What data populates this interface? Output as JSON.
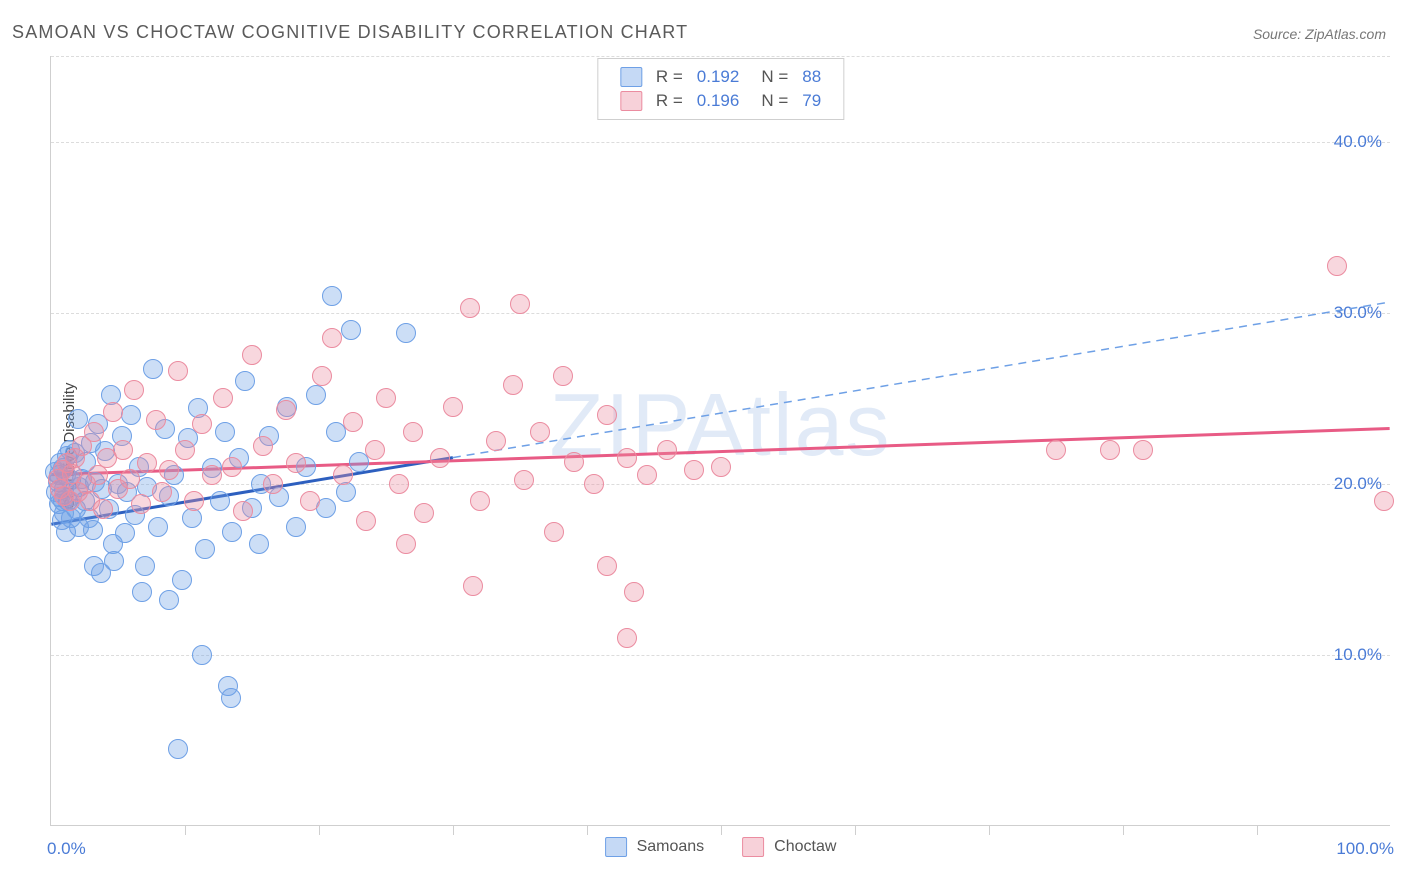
{
  "chart": {
    "type": "scatter",
    "title": "SAMOAN VS CHOCTAW COGNITIVE DISABILITY CORRELATION CHART",
    "source_label": "Source: ZipAtlas.com",
    "ylabel": "Cognitive Disability",
    "watermark": "ZIPAtlas",
    "background_color": "#ffffff",
    "grid_color": "#dcdcdc",
    "axis_color": "#cfcfcf",
    "tick_label_color": "#4a7bd6",
    "title_color": "#5a5a5a",
    "title_fontsize": 18,
    "label_fontsize": 15,
    "tick_fontsize": 17,
    "xlim": [
      0,
      100
    ],
    "ylim": [
      0,
      45
    ],
    "xlim_labels": [
      "0.0%",
      "100.0%"
    ],
    "xtick_positions": [
      10,
      20,
      30,
      40,
      50,
      60,
      70,
      80,
      90
    ],
    "yticks": [
      10,
      20,
      30,
      40
    ],
    "ytick_labels": [
      "10.0%",
      "20.0%",
      "30.0%",
      "40.0%"
    ],
    "marker_radius": 10,
    "marker_opacity": 0.5,
    "marker_stroke_width": 1.5,
    "series": [
      {
        "name": "Samoans",
        "fill_color": "rgba(110,160,230,0.35)",
        "stroke_color": "#6ea0e6",
        "trend_color": "#2d5fbf",
        "trend_width": 3,
        "dash_color": "#6ea0e6",
        "r": 0.192,
        "n": 88,
        "trend_solid": {
          "x1": 0,
          "y1": 17.6,
          "x2": 30,
          "y2": 21.5
        },
        "trend_dash": {
          "x1": 30,
          "y1": 21.5,
          "x2": 100,
          "y2": 30.6
        },
        "points": [
          [
            0.3,
            20.7
          ],
          [
            0.4,
            19.5
          ],
          [
            0.5,
            20.1
          ],
          [
            0.6,
            18.8
          ],
          [
            0.6,
            20.5
          ],
          [
            0.7,
            19.2
          ],
          [
            0.7,
            21.2
          ],
          [
            0.8,
            17.9
          ],
          [
            0.9,
            19.0
          ],
          [
            0.9,
            20.9
          ],
          [
            1.0,
            18.3
          ],
          [
            1.0,
            19.7
          ],
          [
            1.1,
            20.5
          ],
          [
            1.1,
            17.2
          ],
          [
            1.2,
            21.6
          ],
          [
            1.3,
            19.0
          ],
          [
            1.4,
            22.0
          ],
          [
            1.5,
            18.0
          ],
          [
            1.5,
            20.2
          ],
          [
            1.6,
            19.3
          ],
          [
            1.8,
            21.8
          ],
          [
            1.9,
            18.5
          ],
          [
            2.0,
            23.8
          ],
          [
            2.1,
            19.8
          ],
          [
            2.1,
            17.5
          ],
          [
            2.3,
            20.3
          ],
          [
            2.5,
            19.0
          ],
          [
            2.6,
            21.3
          ],
          [
            2.8,
            18.0
          ],
          [
            3.0,
            22.4
          ],
          [
            3.1,
            17.3
          ],
          [
            3.3,
            20.1
          ],
          [
            3.5,
            23.5
          ],
          [
            3.7,
            14.8
          ],
          [
            3.8,
            19.7
          ],
          [
            4.0,
            21.9
          ],
          [
            4.3,
            18.5
          ],
          [
            4.5,
            25.2
          ],
          [
            4.6,
            16.5
          ],
          [
            5.0,
            20.0
          ],
          [
            5.3,
            22.8
          ],
          [
            5.5,
            17.1
          ],
          [
            5.7,
            19.5
          ],
          [
            6.0,
            24.0
          ],
          [
            6.3,
            18.2
          ],
          [
            6.6,
            21.0
          ],
          [
            7.0,
            15.2
          ],
          [
            7.2,
            19.8
          ],
          [
            7.6,
            26.7
          ],
          [
            8.0,
            17.5
          ],
          [
            8.5,
            23.2
          ],
          [
            8.8,
            19.3
          ],
          [
            8.8,
            13.2
          ],
          [
            9.2,
            20.5
          ],
          [
            9.8,
            14.4
          ],
          [
            10.2,
            22.7
          ],
          [
            10.5,
            18.0
          ],
          [
            11.0,
            24.4
          ],
          [
            11.5,
            16.2
          ],
          [
            12.0,
            20.9
          ],
          [
            12.6,
            19.0
          ],
          [
            13.0,
            23.0
          ],
          [
            13.5,
            17.2
          ],
          [
            14.0,
            21.5
          ],
          [
            14.5,
            26.0
          ],
          [
            15.0,
            18.6
          ],
          [
            15.7,
            20.0
          ],
          [
            15.5,
            16.5
          ],
          [
            16.3,
            22.8
          ],
          [
            17.0,
            19.2
          ],
          [
            17.6,
            24.5
          ],
          [
            18.3,
            17.5
          ],
          [
            19.0,
            21.0
          ],
          [
            19.8,
            25.2
          ],
          [
            20.5,
            18.6
          ],
          [
            21.0,
            31.0
          ],
          [
            21.3,
            23.0
          ],
          [
            22.0,
            19.5
          ],
          [
            22.4,
            29.0
          ],
          [
            23.0,
            21.3
          ],
          [
            26.5,
            28.8
          ],
          [
            11.3,
            10.0
          ],
          [
            13.2,
            8.2
          ],
          [
            13.4,
            7.5
          ],
          [
            9.5,
            4.5
          ],
          [
            4.7,
            15.5
          ],
          [
            6.8,
            13.7
          ],
          [
            3.2,
            15.2
          ]
        ]
      },
      {
        "name": "Choctaw",
        "fill_color": "rgba(235,140,160,0.35)",
        "stroke_color": "#eb8ca0",
        "trend_color": "#e85b85",
        "trend_width": 3,
        "dash_color": "#eb8ca0",
        "r": 0.196,
        "n": 79,
        "trend_solid": {
          "x1": 0,
          "y1": 20.5,
          "x2": 100,
          "y2": 23.2
        },
        "trend_dash": null,
        "points": [
          [
            0.5,
            20.3
          ],
          [
            0.7,
            19.7
          ],
          [
            0.9,
            20.8
          ],
          [
            1.0,
            19.3
          ],
          [
            1.2,
            21.2
          ],
          [
            1.4,
            19.0
          ],
          [
            1.6,
            20.6
          ],
          [
            1.8,
            21.5
          ],
          [
            2.0,
            19.5
          ],
          [
            2.3,
            22.2
          ],
          [
            2.6,
            20.0
          ],
          [
            2.9,
            19.0
          ],
          [
            3.2,
            23.0
          ],
          [
            3.5,
            20.5
          ],
          [
            3.9,
            18.5
          ],
          [
            4.2,
            21.5
          ],
          [
            4.6,
            24.2
          ],
          [
            5.0,
            19.7
          ],
          [
            5.4,
            22.0
          ],
          [
            5.9,
            20.3
          ],
          [
            6.2,
            25.5
          ],
          [
            6.7,
            18.8
          ],
          [
            7.2,
            21.2
          ],
          [
            7.8,
            23.7
          ],
          [
            8.3,
            19.5
          ],
          [
            8.8,
            20.8
          ],
          [
            9.5,
            26.6
          ],
          [
            10.0,
            22.0
          ],
          [
            10.7,
            19.0
          ],
          [
            11.3,
            23.5
          ],
          [
            12.0,
            20.5
          ],
          [
            12.8,
            25.0
          ],
          [
            13.5,
            21.0
          ],
          [
            14.3,
            18.4
          ],
          [
            15.0,
            27.5
          ],
          [
            15.8,
            22.2
          ],
          [
            16.6,
            20.0
          ],
          [
            17.5,
            24.3
          ],
          [
            18.3,
            21.2
          ],
          [
            19.3,
            19.0
          ],
          [
            20.2,
            26.3
          ],
          [
            21.0,
            28.5
          ],
          [
            21.8,
            20.5
          ],
          [
            22.5,
            23.6
          ],
          [
            23.5,
            17.8
          ],
          [
            24.2,
            22.0
          ],
          [
            25.0,
            25.0
          ],
          [
            26.0,
            20.0
          ],
          [
            27.0,
            23.0
          ],
          [
            27.8,
            18.3
          ],
          [
            29.0,
            21.5
          ],
          [
            30.0,
            24.5
          ],
          [
            31.3,
            30.3
          ],
          [
            32.0,
            19.0
          ],
          [
            33.2,
            22.5
          ],
          [
            34.5,
            25.8
          ],
          [
            35.3,
            20.2
          ],
          [
            36.5,
            23.0
          ],
          [
            37.5,
            17.2
          ],
          [
            38.2,
            26.3
          ],
          [
            39.0,
            21.3
          ],
          [
            40.5,
            20.0
          ],
          [
            41.5,
            24.0
          ],
          [
            43.0,
            21.5
          ],
          [
            43.5,
            13.7
          ],
          [
            44.5,
            20.5
          ],
          [
            46.0,
            22.0
          ],
          [
            48.0,
            20.8
          ],
          [
            50.0,
            21.0
          ],
          [
            43.0,
            11.0
          ],
          [
            41.5,
            15.2
          ],
          [
            75.0,
            22.0
          ],
          [
            79.0,
            22.0
          ],
          [
            81.5,
            22.0
          ],
          [
            96.0,
            32.7
          ],
          [
            99.5,
            19.0
          ],
          [
            35.0,
            30.5
          ],
          [
            31.5,
            14.0
          ],
          [
            26.5,
            16.5
          ]
        ]
      }
    ],
    "bottom_legend": [
      {
        "label": "Samoans",
        "fill": "rgba(110,160,230,0.4)",
        "stroke": "#6ea0e6"
      },
      {
        "label": "Choctaw",
        "fill": "rgba(235,140,160,0.4)",
        "stroke": "#eb8ca0"
      }
    ]
  }
}
